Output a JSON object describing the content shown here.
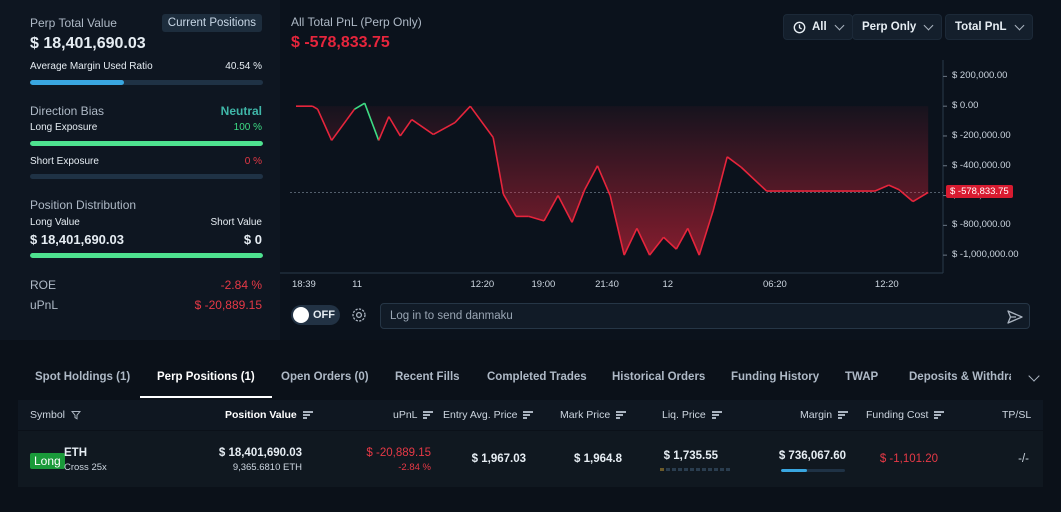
{
  "summary": {
    "perp_total_value_label": "Perp Total Value",
    "current_positions_btn": "Current Positions",
    "perp_total_value": "$ 18,401,690.03",
    "avg_margin_label": "Average Margin Used Ratio",
    "avg_margin_value": "40.54 %",
    "avg_margin_ratio": 0.4054,
    "direction_bias_label": "Direction Bias",
    "direction_bias_value": "Neutral",
    "long_exposure_label": "Long Exposure",
    "long_exposure_value": "100 %",
    "long_exposure_ratio": 1.0,
    "short_exposure_label": "Short Exposure",
    "short_exposure_value": "0 %",
    "short_exposure_ratio": 0.0,
    "position_distribution_label": "Position Distribution",
    "long_value_label": "Long Value",
    "short_value_label": "Short Value",
    "long_value": "$ 18,401,690.03",
    "short_value": "$ 0",
    "distribution_long_ratio": 1.0,
    "roe_label": "ROE",
    "roe_value": "-2.84 %",
    "upnl_label": "uPnL",
    "upnl_value": "$ -20,889.15"
  },
  "chart_panel": {
    "title": "All Total PnL (Perp Only)",
    "current_value": "$ -578,833.75",
    "filter_time": "All",
    "filter_scope": "Perp Only",
    "filter_metric": "Total PnL",
    "toggle_label": "OFF",
    "danmaku_placeholder": "Log in to send danmaku"
  },
  "chart_data": {
    "type": "area",
    "y_ticks": [
      "$ 200,000.00",
      "$ 0.00",
      "$ -200,000.00",
      "$ -400,000.00",
      "$ -600,000.00",
      "$ -800,000.00",
      "$ -1,000,000.00"
    ],
    "y_tick_values": [
      200000,
      0,
      -200000,
      -400000,
      -600000,
      -800000,
      -1000000
    ],
    "x_ticks": [
      "18:39",
      "11",
      "12:20",
      "19:00",
      "21:40",
      "12",
      "06:20",
      "12:20"
    ],
    "x_tick_positions": [
      0,
      5.2,
      14.5,
      19.3,
      24.3,
      29.6,
      37.5,
      46.3
    ],
    "ylim": [
      -1120000,
      310000
    ],
    "xlim": [
      0,
      50
    ],
    "current_value_label": "$ -578,833.75",
    "current_value": -578833.75,
    "x": [
      0,
      1.3,
      1.7,
      2.8,
      4.0,
      4.6,
      5.4,
      6.5,
      7.3,
      8.2,
      9.1,
      10.8,
      12.5,
      13.7,
      15.5,
      16.3,
      17.3,
      18.3,
      19.5,
      20.6,
      21.7,
      22.7,
      23.7,
      24.7,
      25.8,
      26.8,
      27.8,
      28.9,
      29.9,
      30.8,
      31.7,
      32.8,
      33.9,
      35.0,
      37.0,
      38.5,
      40.0,
      42.0,
      44.0,
      45.5,
      46.6,
      47.4,
      48.5,
      49.7
    ],
    "y": [
      0,
      0,
      -20000,
      -230000,
      -90000,
      -20000,
      20000,
      -230000,
      -70000,
      -200000,
      -90000,
      -190000,
      -110000,
      0,
      -210000,
      -590000,
      -740000,
      -740000,
      -770000,
      -600000,
      -780000,
      -560000,
      -400000,
      -600000,
      -1000000,
      -820000,
      -1000000,
      -880000,
      -960000,
      -820000,
      -1000000,
      -700000,
      -340000,
      -410000,
      -570000,
      -570000,
      -570000,
      -570000,
      -570000,
      -570000,
      -530000,
      -560000,
      -640000,
      -578833.75
    ],
    "series": [
      {
        "name": "Total PnL",
        "color": "#e6253c"
      }
    ],
    "positive_color": "#3ddc84",
    "grid": false
  },
  "tabs": [
    {
      "label": "Spot Holdings (1)",
      "active": false
    },
    {
      "label": "Perp Positions (1)",
      "active": true
    },
    {
      "label": "Open Orders (0)",
      "active": false
    },
    {
      "label": "Recent Fills",
      "active": false
    },
    {
      "label": "Completed Trades",
      "active": false
    },
    {
      "label": "Historical Orders",
      "active": false
    },
    {
      "label": "Funding History",
      "active": false
    },
    {
      "label": "TWAP",
      "active": false
    },
    {
      "label": "Deposits & Withdraw",
      "active": false
    }
  ],
  "table": {
    "headers": [
      "Symbol",
      "Position Value",
      "uPnL",
      "Entry Avg. Price",
      "Mark Price",
      "Liq. Price",
      "Margin",
      "Funding Cost",
      "TP/SL"
    ],
    "row": {
      "side": "Long",
      "symbol": "ETH",
      "leverage": "Cross 25x",
      "position_value": "$ 18,401,690.03",
      "position_size": "9,365.6810 ETH",
      "upnl": "$ -20,889.15",
      "upnl_pct": "-2.84 %",
      "entry_price": "$ 1,967.03",
      "mark_price": "$ 1,964.8",
      "liq_price": "$ 1,735.55",
      "margin": "$ 736,067.60",
      "margin_ratio": 0.4054,
      "funding_cost": "$ -1,101.20",
      "tpsl": "-/-"
    }
  }
}
